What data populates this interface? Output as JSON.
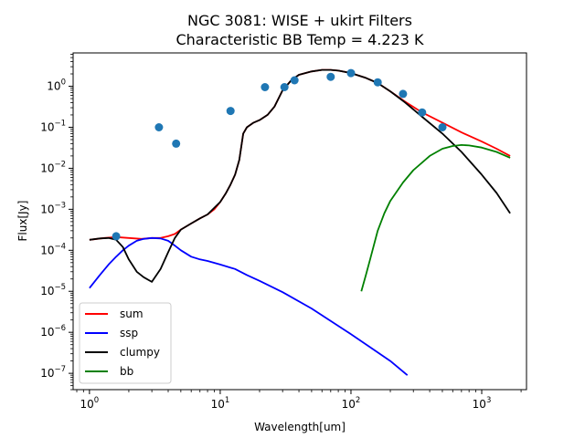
{
  "chart_data": {
    "type": "line",
    "title": [
      "NGC 3081: WISE + ukirt Filters",
      "Characteristic BB Temp = 4.223 K"
    ],
    "xlabel": "Wavelength[um]",
    "ylabel": "Flux[Jy]",
    "xscale": "log",
    "yscale": "log",
    "xlim": [
      0.75,
      2200
    ],
    "ylim": [
      4e-08,
      6.5
    ],
    "x_ticks": [
      {
        "value": 1,
        "base": "10",
        "exp": "0"
      },
      {
        "value": 10,
        "base": "10",
        "exp": "1"
      },
      {
        "value": 100,
        "base": "10",
        "exp": "2"
      },
      {
        "value": 1000,
        "base": "10",
        "exp": "3"
      }
    ],
    "y_ticks": [
      {
        "value": 1e-07,
        "base": "10",
        "exp": "−7"
      },
      {
        "value": 1e-06,
        "base": "10",
        "exp": "−6"
      },
      {
        "value": 1e-05,
        "base": "10",
        "exp": "−5"
      },
      {
        "value": 0.0001,
        "base": "10",
        "exp": "−4"
      },
      {
        "value": 0.001,
        "base": "10",
        "exp": "−3"
      },
      {
        "value": 0.01,
        "base": "10",
        "exp": "−2"
      },
      {
        "value": 0.1,
        "base": "10",
        "exp": "−1"
      },
      {
        "value": 1,
        "base": "10",
        "exp": "0"
      }
    ],
    "legend_position": "lower-left",
    "grid": false,
    "series": [
      {
        "name": "sum",
        "color": "#ff0000",
        "x": [
          1.0,
          1.3,
          1.6,
          2.0,
          2.5,
          3.0,
          3.5,
          4.0,
          4.5,
          5.0,
          6.0,
          7.0,
          8.0,
          9.0,
          10.0,
          11.0,
          12.0,
          13.0,
          14.0,
          15.0,
          16.0,
          18.0,
          20.0,
          23.0,
          26.0,
          30.0,
          35.0,
          40.0,
          50.0,
          60.0,
          70.0,
          80.0,
          100.0,
          130.0,
          160.0,
          200.0,
          260.0,
          350.0,
          500.0,
          700.0,
          1000.0,
          1300.0,
          1650.0
        ],
        "y": [
          0.00018,
          0.0002,
          0.00021,
          0.0002,
          0.00019,
          0.0002,
          0.0002,
          0.00022,
          0.00025,
          0.00032,
          0.00045,
          0.0006,
          0.00075,
          0.001,
          0.0015,
          0.0024,
          0.004,
          0.007,
          0.016,
          0.07,
          0.1,
          0.13,
          0.15,
          0.2,
          0.32,
          0.8,
          1.4,
          1.9,
          2.3,
          2.5,
          2.5,
          2.4,
          2.1,
          1.6,
          1.2,
          0.75,
          0.42,
          0.23,
          0.13,
          0.075,
          0.045,
          0.03,
          0.02
        ]
      },
      {
        "name": "ssp",
        "color": "#0000ff",
        "x": [
          1.0,
          1.2,
          1.4,
          1.6,
          1.8,
          2.0,
          2.3,
          2.6,
          3.0,
          3.5,
          4.0,
          4.5,
          5.0,
          6.0,
          7.0,
          8.0,
          10.0,
          13.0,
          16.0,
          20.0,
          30.0,
          50.0,
          100.0,
          200.0,
          270.0
        ],
        "y": [
          1.2e-05,
          2.5e-05,
          4.5e-05,
          7e-05,
          0.0001,
          0.00013,
          0.00017,
          0.00019,
          0.0002,
          0.000195,
          0.00017,
          0.00013,
          0.0001,
          7e-05,
          6e-05,
          5.5e-05,
          4.5e-05,
          3.5e-05,
          2.5e-05,
          1.8e-05,
          9.5e-06,
          3.8e-06,
          9e-07,
          2e-07,
          9e-08
        ]
      },
      {
        "name": "clumpy",
        "color": "#000000",
        "x": [
          1.0,
          1.2,
          1.4,
          1.6,
          1.8,
          2.0,
          2.3,
          2.6,
          3.0,
          3.5,
          4.0,
          4.5,
          5.0,
          6.0,
          7.0,
          8.0,
          10.0,
          11.0,
          12.0,
          13.0,
          14.0,
          15.0,
          16.0,
          18.0,
          20.0,
          23.0,
          26.0,
          30.0,
          35.0,
          40.0,
          50.0,
          60.0,
          70.0,
          80.0,
          100.0,
          130.0,
          160.0,
          200.0,
          260.0,
          350.0,
          500.0,
          700.0,
          1000.0,
          1300.0,
          1650.0
        ],
        "y": [
          0.00018,
          0.000195,
          0.0002,
          0.00018,
          0.00012,
          6e-05,
          3e-05,
          2.2e-05,
          1.7e-05,
          3.5e-05,
          9e-05,
          0.0002,
          0.00032,
          0.00045,
          0.0006,
          0.00075,
          0.0015,
          0.0024,
          0.004,
          0.007,
          0.016,
          0.07,
          0.1,
          0.13,
          0.15,
          0.2,
          0.32,
          0.8,
          1.4,
          1.9,
          2.3,
          2.5,
          2.5,
          2.4,
          2.1,
          1.6,
          1.2,
          0.75,
          0.4,
          0.18,
          0.07,
          0.025,
          0.007,
          0.0025,
          0.0008
        ]
      },
      {
        "name": "bb",
        "color": "#008000",
        "x": [
          120.0,
          130.0,
          140.0,
          160.0,
          180.0,
          200.0,
          250.0,
          300.0,
          400.0,
          500.0,
          600.0,
          700.0,
          800.0,
          1000.0,
          1300.0,
          1650.0
        ],
        "y": [
          1e-05,
          2.5e-05,
          6e-05,
          0.0003,
          0.0008,
          0.0016,
          0.0045,
          0.009,
          0.02,
          0.03,
          0.035,
          0.037,
          0.036,
          0.032,
          0.025,
          0.018
        ]
      }
    ],
    "points": {
      "color": "#1f77b4",
      "x": [
        1.6,
        3.4,
        4.6,
        12.0,
        22.0,
        31.0,
        37.0,
        70.0,
        100.0,
        160.0,
        250.0,
        350.0,
        500.0
      ],
      "y": [
        0.00022,
        0.1,
        0.04,
        0.25,
        0.95,
        0.95,
        1.4,
        1.7,
        2.1,
        1.25,
        0.65,
        0.23,
        0.1
      ]
    }
  }
}
